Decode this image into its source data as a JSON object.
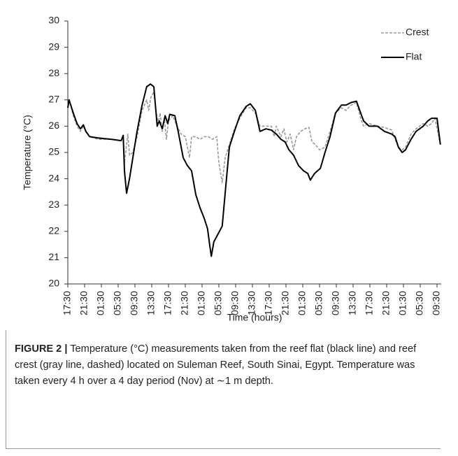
{
  "chart_data": {
    "type": "line",
    "xlabel": "Time (hours)",
    "ylabel": "Temperature (°C)",
    "xlim": [
      0,
      89
    ],
    "ylim": [
      20,
      30
    ],
    "yticks": [
      20,
      21,
      22,
      23,
      24,
      25,
      26,
      27,
      28,
      29,
      30
    ],
    "xticks": [
      {
        "value": 0,
        "label": "17:30"
      },
      {
        "value": 4,
        "label": "21:30"
      },
      {
        "value": 8,
        "label": "01:30"
      },
      {
        "value": 12,
        "label": "05:30"
      },
      {
        "value": 16,
        "label": "09:30"
      },
      {
        "value": 20,
        "label": "13:30"
      },
      {
        "value": 24,
        "label": "17:30"
      },
      {
        "value": 28,
        "label": "21:30"
      },
      {
        "value": 32,
        "label": "01:30"
      },
      {
        "value": 36,
        "label": "05:30"
      },
      {
        "value": 40,
        "label": "09:30"
      },
      {
        "value": 44,
        "label": "13:30"
      },
      {
        "value": 48,
        "label": "17:30"
      },
      {
        "value": 52,
        "label": "21:30"
      },
      {
        "value": 56,
        "label": "01:30"
      },
      {
        "value": 60,
        "label": "05:30"
      },
      {
        "value": 64,
        "label": "09:30"
      },
      {
        "value": 68,
        "label": "13:30"
      },
      {
        "value": 72,
        "label": "17:30"
      },
      {
        "value": 76,
        "label": "21:30"
      },
      {
        "value": 80,
        "label": "01:30"
      },
      {
        "value": 84,
        "label": "05:30"
      },
      {
        "value": 88,
        "label": "09:30"
      }
    ],
    "legend": "top-right",
    "series": [
      {
        "name": "Crest",
        "color": "#999999",
        "dashed": true,
        "x": [
          0,
          0.3,
          1.3,
          2.2,
          3,
          3.7,
          4.3,
          5.2,
          7.2,
          10.5,
          12.7,
          13.2,
          13.5,
          14,
          14.3,
          14.7,
          15.5,
          16.5,
          17.7,
          18.8,
          19.3,
          19.8,
          20.5,
          21,
          21.5,
          22,
          22.5,
          23,
          23.5,
          24,
          25,
          26,
          27,
          28,
          28.5,
          29,
          29.5,
          30.5,
          31.5,
          32.5,
          33.5,
          34.5,
          35.5,
          36,
          36.8,
          37.5,
          38.5,
          39.7,
          41,
          42.5,
          43.5,
          44.7,
          45.8,
          47.2,
          48.5,
          49.2,
          49.7,
          50.8,
          51.5,
          52.2,
          53,
          53.8,
          54.5,
          55.5,
          56.5,
          57.5,
          58.2,
          59,
          60,
          61.3,
          62.5,
          63.8,
          65.2,
          66.3,
          67.5,
          68.8,
          69.8,
          70.5,
          71.8,
          73.8,
          75.5,
          77.2,
          78,
          78.8,
          79.7,
          80.5,
          81.8,
          83,
          84.7,
          85.8,
          86.7,
          87.5,
          88.8
        ],
        "values": [
          26.8,
          27.0,
          26.4,
          26.0,
          25.8,
          26.0,
          25.8,
          25.6,
          25.5,
          25.5,
          25.45,
          25.6,
          24.6,
          25.3,
          25.7,
          24.9,
          25.0,
          25.6,
          26.6,
          27.0,
          26.6,
          27.1,
          27.3,
          26.6,
          26.1,
          26.5,
          25.8,
          26.3,
          25.5,
          26.2,
          26.4,
          26.0,
          25.7,
          25.6,
          25.2,
          24.8,
          25.6,
          25.6,
          25.5,
          25.6,
          25.6,
          25.5,
          25.6,
          24.6,
          23.85,
          24.8,
          25.3,
          25.9,
          26.3,
          26.7,
          26.7,
          26.5,
          26.0,
          26.0,
          26.0,
          25.6,
          26.0,
          25.6,
          25.9,
          25.4,
          25.7,
          25.1,
          25.6,
          25.8,
          25.9,
          25.95,
          25.4,
          25.3,
          25.1,
          25.2,
          25.8,
          26.5,
          26.7,
          26.6,
          26.8,
          26.9,
          26.3,
          26.0,
          26.1,
          26.0,
          25.95,
          25.85,
          25.5,
          25.2,
          25.1,
          25.2,
          25.7,
          25.9,
          26.1,
          26.0,
          26.1,
          26.3,
          25.3
        ]
      },
      {
        "name": "Flat",
        "color": "#000000",
        "dashed": false,
        "x": [
          0,
          0.3,
          1.3,
          2.2,
          3,
          3.7,
          4.3,
          5.2,
          7.2,
          10.5,
          12.7,
          13.2,
          13.5,
          14,
          14.7,
          15.5,
          16.5,
          17.7,
          18.8,
          19.7,
          20.5,
          21.3,
          21.8,
          22.5,
          23.2,
          23.8,
          24.3,
          25.5,
          26.3,
          27.5,
          28.5,
          29.5,
          30.5,
          31.5,
          32.5,
          33.3,
          33.8,
          34.2,
          34.8,
          35.8,
          36.8,
          37.7,
          38.5,
          39.7,
          41,
          42.5,
          43.5,
          44.7,
          45.8,
          47.2,
          48.5,
          49.7,
          50.8,
          51.8,
          52.7,
          53.8,
          55,
          56.2,
          57.2,
          57.8,
          58.8,
          60.2,
          61.3,
          62.5,
          63.8,
          65.2,
          66.3,
          67.5,
          68.8,
          69.8,
          70.5,
          71.8,
          73.8,
          75.5,
          77.2,
          78,
          78.8,
          79.7,
          80.5,
          81.8,
          83,
          84.7,
          85.8,
          86.7,
          88,
          88.8
        ],
        "values": [
          26.7,
          27.0,
          26.5,
          26.1,
          25.9,
          26.05,
          25.8,
          25.6,
          25.55,
          25.5,
          25.45,
          25.65,
          24.3,
          23.45,
          24.0,
          24.8,
          25.8,
          26.8,
          27.5,
          27.6,
          27.5,
          26.0,
          26.2,
          25.9,
          26.4,
          26.1,
          26.45,
          26.4,
          25.8,
          24.8,
          24.5,
          24.3,
          23.4,
          22.9,
          22.5,
          22.1,
          21.5,
          21.05,
          21.6,
          21.9,
          22.2,
          23.8,
          25.2,
          25.8,
          26.4,
          26.75,
          26.85,
          26.6,
          25.8,
          25.9,
          25.85,
          25.7,
          25.5,
          25.4,
          25.1,
          24.9,
          24.5,
          24.3,
          24.2,
          23.95,
          24.2,
          24.4,
          25.0,
          25.6,
          26.5,
          26.8,
          26.8,
          26.9,
          26.95,
          26.5,
          26.2,
          26.0,
          26.0,
          25.8,
          25.7,
          25.6,
          25.2,
          25.0,
          25.1,
          25.5,
          25.8,
          26.0,
          26.2,
          26.3,
          26.3,
          25.3
        ]
      }
    ]
  },
  "caption": {
    "label": "FIGURE 2 |",
    "text": "Temperature (°C) measurements taken from the reef flat (black line) and reef crest (gray line, dashed) located on Suleman Reef, South Sinai, Egypt. Temperature was taken every 4 h over a 4 day period (Nov) at ∼1 m depth."
  }
}
